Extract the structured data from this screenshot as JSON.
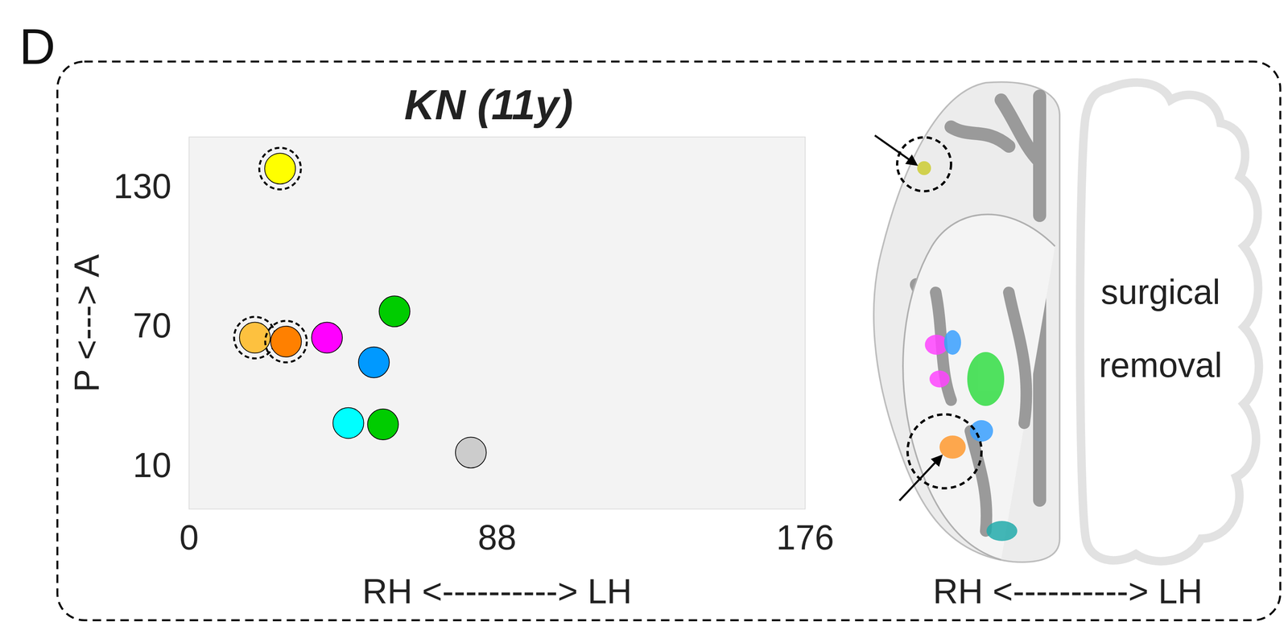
{
  "panel_label": "D",
  "chart_data": {
    "type": "scatter",
    "title": "KN (11y)",
    "x_label": "RH <----------> LH",
    "y_label": "P <---> A",
    "x": [
      26.0,
      18.8,
      27.7,
      39.4,
      58.7,
      52.8,
      45.5,
      55.4,
      80.5
    ],
    "values": [
      137.4,
      64.7,
      63.0,
      64.7,
      76.0,
      54.1,
      28.0,
      27.4,
      15.3
    ],
    "colors": [
      "#ffff00",
      "#fdc13f",
      "#ff8000",
      "#ff00ff",
      "#00cc00",
      "#0099ff",
      "#00ffff",
      "#00cc00",
      "#cccccc"
    ],
    "circled": [
      true,
      true,
      true,
      false,
      false,
      false,
      false,
      false,
      false
    ],
    "xlim": [
      0,
      176
    ],
    "ylim": [
      -9,
      151
    ],
    "xticks": [
      0,
      88,
      176
    ],
    "yticks": [
      10,
      70,
      130
    ],
    "grid": false,
    "marker": "circle"
  },
  "brain_view": {
    "annotation": "surgical removal",
    "axis_label": "RH <----------> LH"
  }
}
